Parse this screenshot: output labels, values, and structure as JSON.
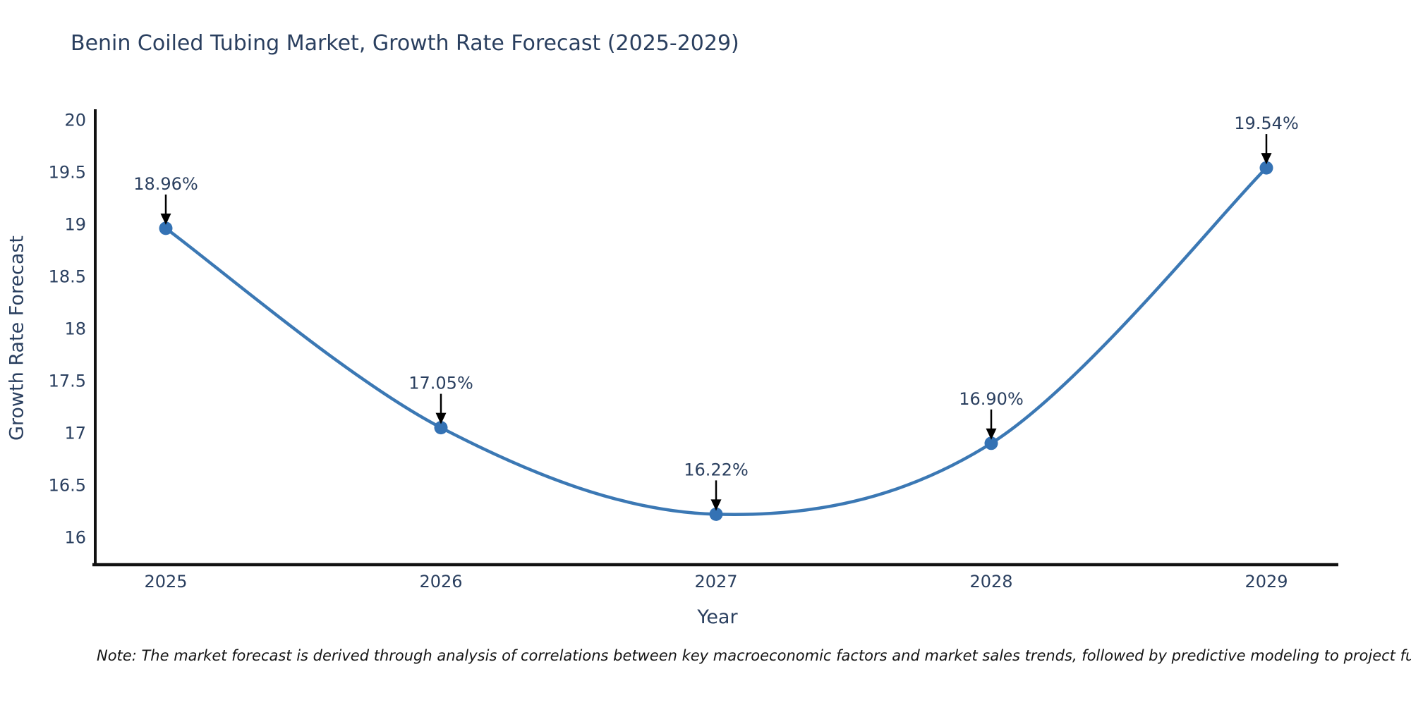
{
  "page": {
    "title": "Benin Coiled Tubing Market, Growth Rate Forecast (2025-2029)",
    "note": "Note: The market forecast is derived through analysis of correlations between key macroeconomic factors and market sales trends, followed by predictive modeling to project future sales."
  },
  "chart_data": {
    "type": "line",
    "line_shape": "spline",
    "title": "Benin Coiled Tubing Market, Growth Rate Forecast (2025-2029)",
    "x": [
      "2025",
      "2026",
      "2027",
      "2028",
      "2029"
    ],
    "values": [
      18.96,
      17.05,
      16.22,
      16.9,
      19.54
    ],
    "point_labels": [
      "18.96%",
      "17.05%",
      "16.22%",
      "16.90%",
      "19.54%"
    ],
    "xlabel": "Year",
    "ylabel": "Growth Rate Forecast",
    "yticks": [
      20,
      19.5,
      19,
      18.5,
      18,
      17.5,
      17,
      16.5,
      16
    ],
    "ytick_labels": [
      "20",
      "19.5",
      "19",
      "18.5",
      "18",
      "17.5",
      "17",
      "16.5",
      "16"
    ],
    "ylim": [
      15.74,
      20.1
    ],
    "grid": false,
    "legend": "none",
    "annotations_have_arrows": true,
    "colors": {
      "line": "#3b78b4",
      "marker": "#3472b4",
      "annotation_arrow": "#000000",
      "axis": "#111111",
      "text": "#2a3f5f"
    }
  }
}
